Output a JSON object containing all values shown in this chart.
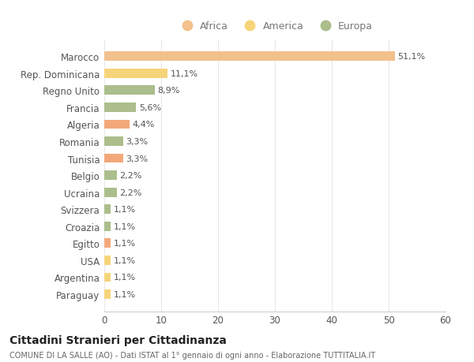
{
  "countries": [
    "Marocco",
    "Rep. Dominicana",
    "Regno Unito",
    "Francia",
    "Algeria",
    "Romania",
    "Tunisia",
    "Belgio",
    "Ucraina",
    "Svizzera",
    "Croazia",
    "Egitto",
    "USA",
    "Argentina",
    "Paraguay"
  ],
  "values": [
    51.1,
    11.1,
    8.9,
    5.6,
    4.4,
    3.3,
    3.3,
    2.2,
    2.2,
    1.1,
    1.1,
    1.1,
    1.1,
    1.1,
    1.1
  ],
  "labels": [
    "51,1%",
    "11,1%",
    "8,9%",
    "5,6%",
    "4,4%",
    "3,3%",
    "3,3%",
    "2,2%",
    "2,2%",
    "1,1%",
    "1,1%",
    "1,1%",
    "1,1%",
    "1,1%",
    "1,1%"
  ],
  "colors": [
    "#F2C18D",
    "#F6D57A",
    "#ABBE8B",
    "#ABBE8B",
    "#F2A87A",
    "#ABBE8B",
    "#F2A87A",
    "#ABBE8B",
    "#ABBE8B",
    "#ABBE8B",
    "#ABBE8B",
    "#F2A87A",
    "#F6D57A",
    "#F6D57A",
    "#F6D57A"
  ],
  "legend_labels": [
    "Africa",
    "America",
    "Europa"
  ],
  "legend_colors": [
    "#F2C18D",
    "#F6D57A",
    "#ABBE8B"
  ],
  "title": "Cittadini Stranieri per Cittadinanza",
  "subtitle": "COMUNE DI LA SALLE (AO) - Dati ISTAT al 1° gennaio di ogni anno - Elaborazione TUTTITALIA.IT",
  "xlim": [
    0,
    60
  ],
  "xticks": [
    0,
    10,
    20,
    30,
    40,
    50,
    60
  ],
  "background_color": "#FFFFFF",
  "plot_bg_color": "#FFFFFF",
  "grid_color": "#E8E8E8"
}
